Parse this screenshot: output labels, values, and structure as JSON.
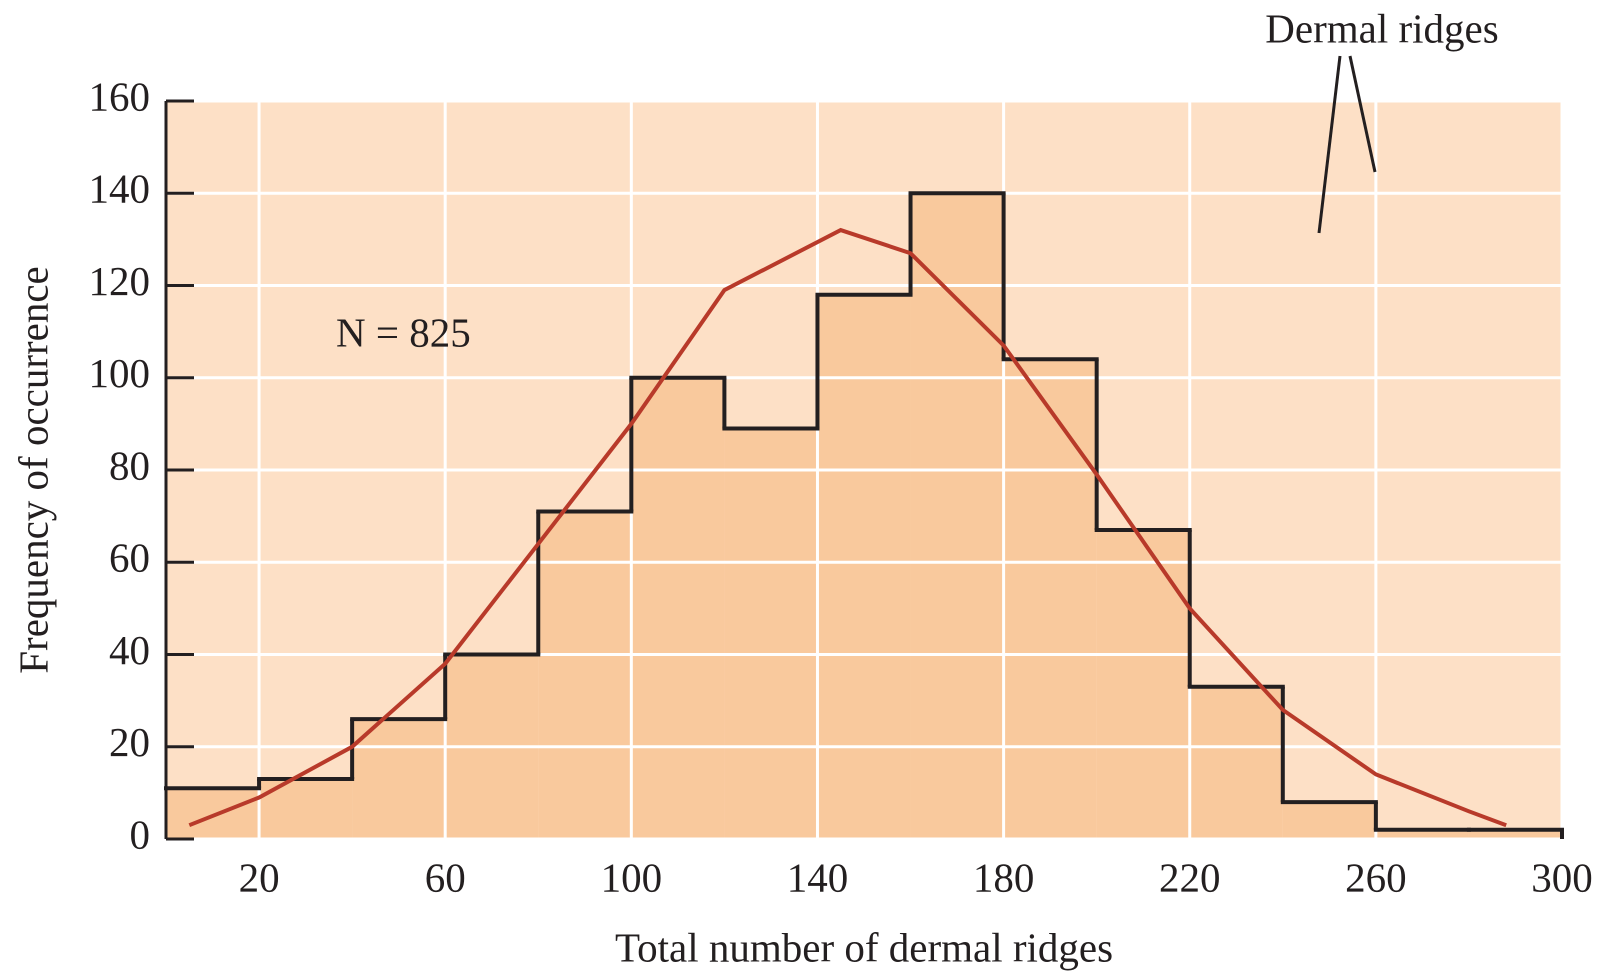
{
  "chart_data": {
    "type": "histogram",
    "x_label": "Total number of dermal ridges",
    "y_label": "Frequency of occurrence",
    "bins": [
      0,
      20,
      40,
      60,
      80,
      100,
      120,
      140,
      160,
      180,
      200,
      220,
      240,
      260,
      280,
      300
    ],
    "counts": [
      11,
      13,
      26,
      40,
      71,
      100,
      89,
      118,
      140,
      104,
      67,
      33,
      8,
      2,
      2
    ],
    "color": "#f9c99d",
    "curve": {
      "x": [
        5,
        20,
        40,
        60,
        80,
        100,
        120,
        145,
        160,
        180,
        200,
        220,
        240,
        260,
        280,
        288
      ],
      "values": [
        3,
        9,
        20,
        38,
        64,
        90,
        119,
        132,
        127,
        107,
        79,
        50,
        28,
        14,
        6,
        3
      ],
      "color": "#b83a2a"
    },
    "xlim": [
      0,
      300
    ],
    "ylim": [
      0,
      160
    ],
    "xticks": [
      20,
      60,
      100,
      140,
      180,
      220,
      260,
      300
    ],
    "yticks": [
      0,
      20,
      40,
      60,
      80,
      100,
      120,
      140,
      160
    ],
    "grid": true,
    "annotations": [
      "N = 825",
      "Dermal ridges"
    ]
  }
}
